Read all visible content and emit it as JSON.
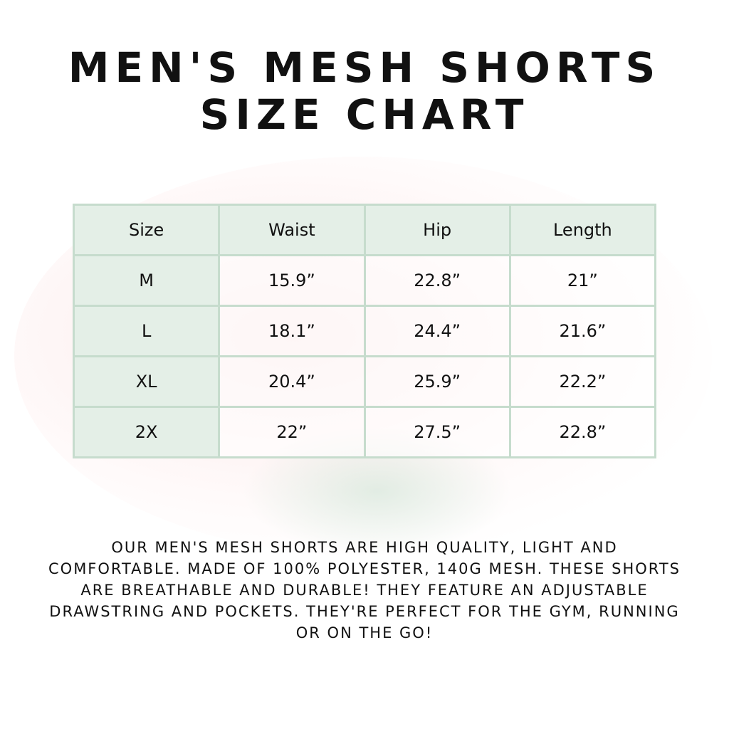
{
  "title": {
    "line1": "MEN'S MESH SHORTS",
    "line2": "SIZE CHART"
  },
  "table": {
    "headers": [
      "Size",
      "Waist",
      "Hip",
      "Length"
    ],
    "rows": [
      [
        "M",
        "15.9”",
        "22.8”",
        "21”"
      ],
      [
        "L",
        "18.1”",
        "24.4”",
        "21.6”"
      ],
      [
        "XL",
        "20.4”",
        "25.9”",
        "22.2”"
      ],
      [
        "2X",
        "22”",
        "27.5”",
        "22.8”"
      ]
    ]
  },
  "description": "Our men's mesh shorts are high quality, light and comfortable. Made of 100% polyester, 140g mesh. These shorts are breathable and durable! They feature an adjustable drawstring and pockets. They're perfect for the gym, running or on the go!",
  "colors": {
    "header_fill": "#e4efe7",
    "border": "#c6dccd"
  }
}
